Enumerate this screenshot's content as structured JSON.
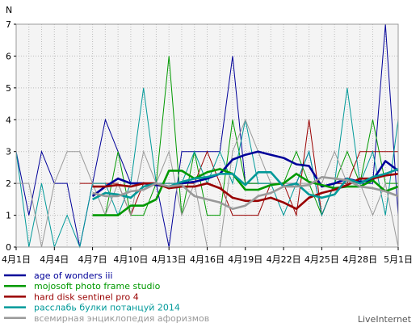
{
  "chart_data": {
    "type": "line",
    "ylabel": "N",
    "ylim": [
      0,
      7
    ],
    "grid": true,
    "x_tick_labels": [
      "4月1日",
      "4月4日",
      "4月7日",
      "4月10日",
      "4月13日",
      "4月16日",
      "4月19日",
      "4月22日",
      "4月25日",
      "4月28日",
      "5月1日"
    ],
    "x_tick_days": [
      1,
      4,
      7,
      10,
      13,
      16,
      19,
      22,
      25,
      28,
      31
    ],
    "y_ticks": [
      0,
      1,
      2,
      3,
      4,
      5,
      6,
      7
    ],
    "x_days": [
      1,
      2,
      3,
      4,
      5,
      6,
      7,
      8,
      9,
      10,
      11,
      12,
      13,
      14,
      15,
      16,
      17,
      18,
      19,
      20,
      21,
      22,
      23,
      24,
      25,
      26,
      27,
      28,
      29,
      30,
      31
    ],
    "series": [
      {
        "name": "age of wonders iii",
        "color": "#000099",
        "values": [
          3,
          1,
          3,
          2,
          2,
          0,
          2,
          4,
          3,
          2,
          2,
          2,
          0,
          3,
          3,
          3,
          3,
          6,
          2,
          2,
          2,
          2,
          2,
          3,
          1,
          2,
          2,
          2,
          2,
          7,
          1
        ],
        "avg": [
          null,
          null,
          null,
          null,
          null,
          null,
          1.6,
          1.9,
          2.15,
          2.0,
          2.0,
          1.95,
          1.9,
          2.0,
          2.05,
          2.15,
          2.3,
          2.75,
          2.9,
          3.0,
          2.9,
          2.8,
          2.6,
          2.55,
          1.9,
          2.0,
          2.15,
          2.05,
          2.1,
          2.7,
          2.4
        ]
      },
      {
        "name": "mojosoft photo frame studio",
        "color": "#009900",
        "values": [
          null,
          null,
          null,
          null,
          null,
          null,
          1,
          1,
          3,
          1,
          1,
          2,
          6,
          1,
          3,
          1,
          1,
          4,
          2,
          2,
          2,
          2,
          3,
          2,
          1,
          2,
          3,
          2,
          4,
          2,
          2
        ],
        "avg": [
          null,
          null,
          null,
          null,
          null,
          null,
          1.0,
          1.0,
          1.0,
          1.3,
          1.3,
          1.5,
          2.4,
          2.4,
          2.15,
          2.35,
          2.45,
          2.3,
          1.8,
          1.8,
          1.95,
          2.0,
          2.3,
          2.05,
          1.95,
          1.85,
          1.9,
          1.9,
          2.1,
          1.75,
          1.9
        ]
      },
      {
        "name": "hard disk sentinel pro 4",
        "color": "#990000",
        "values": [
          null,
          null,
          null,
          null,
          null,
          2,
          2,
          2,
          2,
          1,
          2,
          2,
          2,
          2,
          2,
          3,
          2,
          1,
          1,
          1,
          2,
          2,
          1,
          4,
          1,
          2,
          2,
          3,
          3,
          3,
          3
        ],
        "avg": [
          null,
          null,
          null,
          null,
          null,
          null,
          1.9,
          1.9,
          1.95,
          1.9,
          2.0,
          2.0,
          1.85,
          1.9,
          1.9,
          2.0,
          1.85,
          1.55,
          1.45,
          1.45,
          1.55,
          1.4,
          1.2,
          1.55,
          1.7,
          1.8,
          1.95,
          2.15,
          2.15,
          2.25,
          2.3
        ]
      },
      {
        "name": "расслабь булки потанцуй 2014",
        "color": "#009999",
        "values": [
          3,
          0,
          2,
          0,
          1,
          0,
          2,
          2,
          1,
          2,
          5,
          2,
          2,
          2,
          3,
          2,
          3,
          2,
          4,
          2,
          2,
          1,
          2,
          3,
          1,
          2,
          5,
          2,
          3,
          1,
          4
        ],
        "avg": [
          null,
          null,
          null,
          null,
          null,
          null,
          1.5,
          1.7,
          1.65,
          1.55,
          1.9,
          2.0,
          1.9,
          2.05,
          2.15,
          2.2,
          2.3,
          2.3,
          1.95,
          2.35,
          2.35,
          1.9,
          2.0,
          1.65,
          1.55,
          1.65,
          2.15,
          2.0,
          2.2,
          2.3,
          2.45
        ]
      },
      {
        "name": "всемирная энциклопедия афоризмов",
        "color": "#999999",
        "values": [
          2,
          2,
          0,
          2,
          3,
          3,
          2,
          1,
          2,
          1,
          3,
          2,
          3,
          1,
          2,
          0,
          0,
          3,
          4,
          3,
          2,
          2,
          2,
          2,
          2,
          3,
          2,
          2,
          1,
          2,
          0
        ],
        "avg": [
          null,
          null,
          null,
          null,
          null,
          null,
          1.7,
          1.6,
          1.6,
          1.75,
          1.8,
          2.0,
          1.9,
          1.95,
          1.6,
          1.5,
          1.4,
          1.2,
          1.3,
          1.6,
          1.7,
          1.9,
          1.9,
          1.95,
          2.2,
          2.15,
          2.1,
          1.9,
          1.85,
          1.75,
          1.6
        ]
      }
    ]
  },
  "watermark": "LiveInternet"
}
